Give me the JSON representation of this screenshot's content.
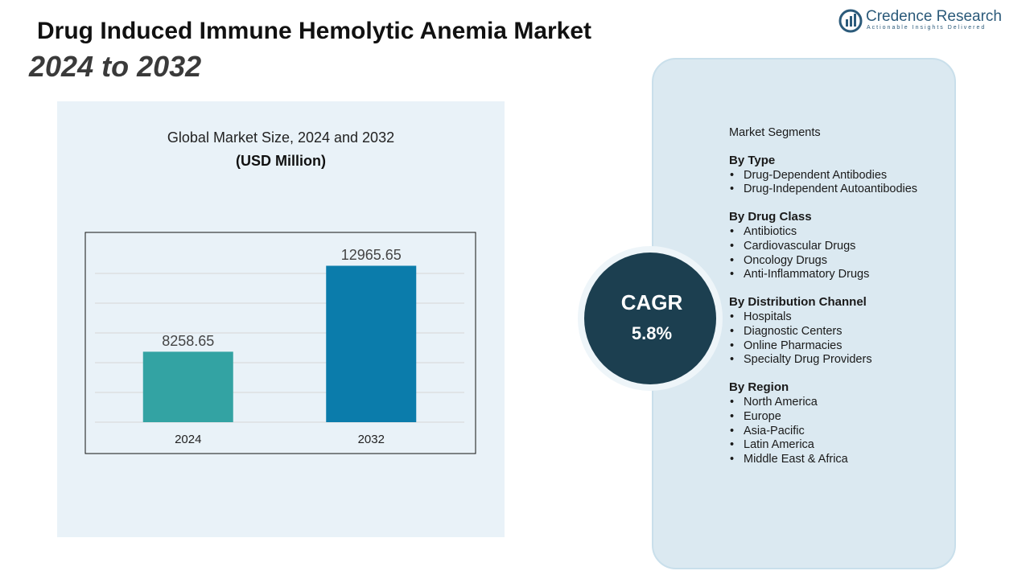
{
  "header": {
    "title": "Drug Induced Immune Hemolytic Anemia Market",
    "subtitle": "2024 to 2032"
  },
  "logo": {
    "name": "Credence Research",
    "tagline": "Actionable Insights Delivered"
  },
  "chart_data": {
    "type": "bar",
    "title": "Global Market Size, 2024 and 2032",
    "subtitle": "(USD Million)",
    "categories": [
      "2024",
      "2032"
    ],
    "values": [
      8258.65,
      12965.65
    ],
    "colors": [
      "#33a3a3",
      "#0b7cab"
    ],
    "ylim": [
      4400,
      14000
    ]
  },
  "cagr": {
    "label": "CAGR",
    "value": "5.8%"
  },
  "segments": {
    "title": "Market Segments",
    "groups": [
      {
        "heading": "By Type",
        "items": [
          "Drug-Dependent Antibodies",
          "Drug-Independent Autoantibodies"
        ]
      },
      {
        "heading": "By Drug Class",
        "items": [
          "Antibiotics",
          "Cardiovascular Drugs",
          "Oncology Drugs",
          "Anti-Inflammatory Drugs"
        ]
      },
      {
        "heading": "By Distribution Channel",
        "items": [
          "Hospitals",
          "Diagnostic Centers",
          "Online Pharmacies",
          "Specialty Drug Providers"
        ]
      },
      {
        "heading": "By Region",
        "items": [
          "North America",
          "Europe",
          "Asia-Pacific",
          "Latin America",
          "Middle East & Africa"
        ]
      }
    ]
  }
}
